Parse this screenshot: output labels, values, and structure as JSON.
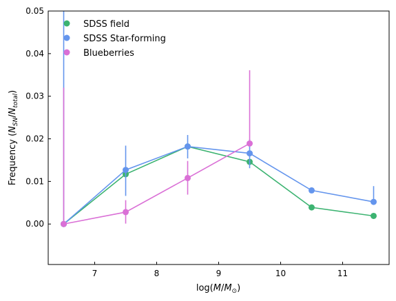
{
  "chart_data": {
    "type": "line",
    "title": "",
    "xlabel": "log(M/M⊙)",
    "ylabel": "Frequency (N_SN/N_total)",
    "xlim": [
      6.25,
      11.75
    ],
    "ylim": [
      -0.0095,
      0.05
    ],
    "xticks": [
      7,
      8,
      9,
      10,
      11
    ],
    "xtick_labels": [
      "7",
      "8",
      "9",
      "10",
      "11"
    ],
    "yticks": [
      0.0,
      0.01,
      0.02,
      0.03,
      0.04,
      0.05
    ],
    "ytick_labels": [
      "0.00",
      "0.01",
      "0.02",
      "0.03",
      "0.04",
      "0.05"
    ],
    "grid": false,
    "legend_position": "top-left",
    "series": [
      {
        "name": "SDSS field",
        "color": "#3cb371",
        "x": [
          6.5,
          7.5,
          8.5,
          9.5,
          10.5,
          11.5
        ],
        "y": [
          0.0,
          0.0117,
          0.0182,
          0.0146,
          0.0039,
          0.0019
        ],
        "err_low": [
          0.0,
          0.0117,
          0.0182,
          0.0146,
          0.0039,
          0.0019
        ],
        "err_high": [
          0.0,
          0.0117,
          0.0182,
          0.0146,
          0.0039,
          0.0019
        ]
      },
      {
        "name": "SDSS Star-forming",
        "color": "#6495ed",
        "x": [
          6.5,
          7.5,
          8.5,
          9.5,
          10.5,
          11.5
        ],
        "y": [
          0.0,
          0.0127,
          0.0182,
          0.0166,
          0.0079,
          0.0052
        ],
        "err_low": [
          0.0,
          0.0066,
          0.0154,
          0.0131,
          0.0079,
          0.0052
        ],
        "err_high": [
          0.05,
          0.0184,
          0.0209,
          0.0199,
          0.0079,
          0.0089
        ]
      },
      {
        "name": "Blueberries",
        "color": "#da70d6",
        "x": [
          6.5,
          7.5,
          8.5,
          9.5
        ],
        "y": [
          0.0,
          0.0028,
          0.0108,
          0.0189
        ],
        "err_low": [
          0.0,
          0.0001,
          0.0069,
          0.0189
        ],
        "err_high": [
          0.032,
          0.0056,
          0.0148,
          0.0361
        ]
      }
    ]
  }
}
